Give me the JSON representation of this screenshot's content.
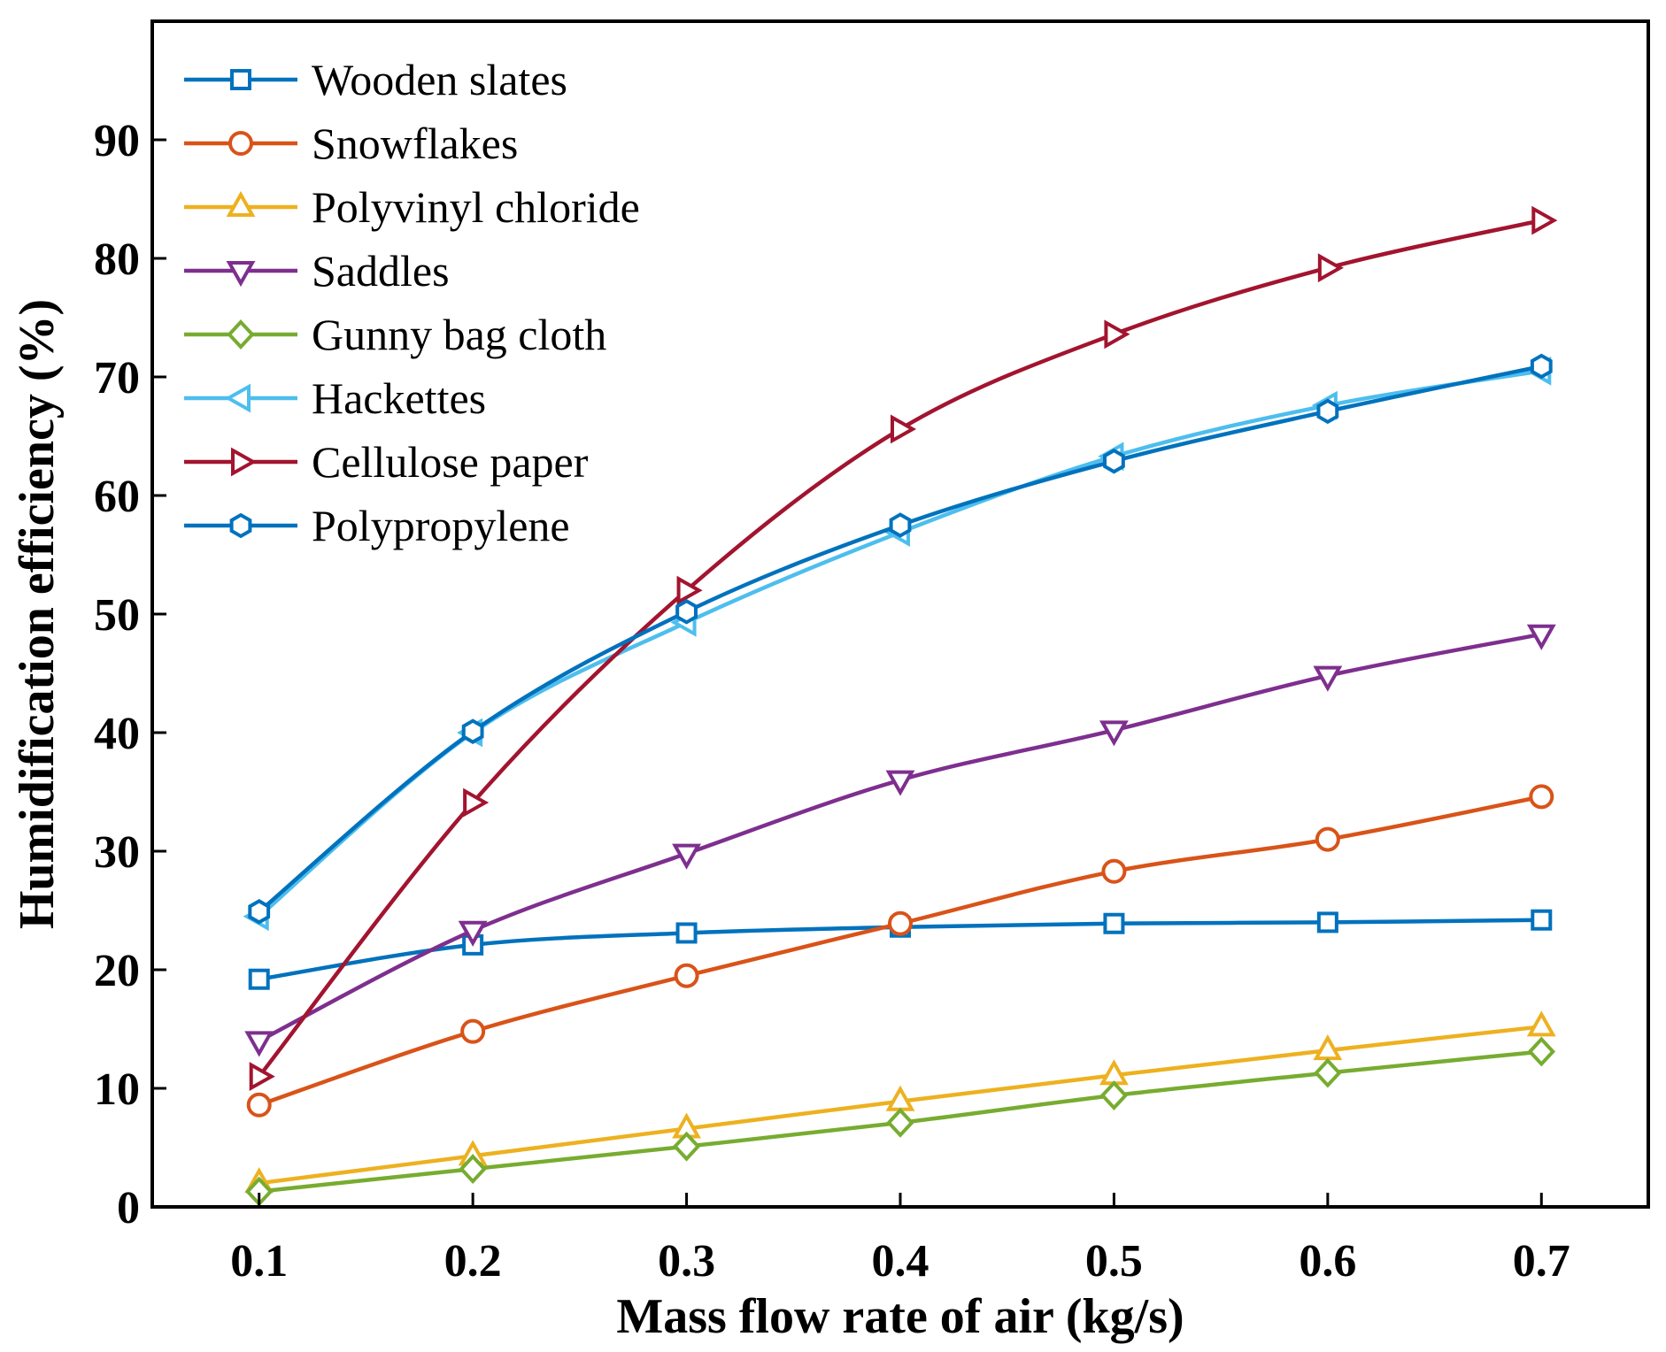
{
  "chart_data": {
    "type": "line",
    "xlabel": "Mass flow rate of air (kg/s)",
    "ylabel": "Humidification efficiency (%)",
    "x": [
      0.1,
      0.2,
      0.3,
      0.4,
      0.5,
      0.6,
      0.7
    ],
    "x_tick_labels": [
      "0.1",
      "0.2",
      "0.3",
      "0.4",
      "0.5",
      "0.6",
      "0.7"
    ],
    "xlim": [
      0.05,
      0.75
    ],
    "ylim": [
      0,
      100
    ],
    "y_ticks": [
      0,
      10,
      20,
      30,
      40,
      50,
      60,
      70,
      80,
      90
    ],
    "y_tick_labels": [
      "0",
      "10",
      "20",
      "30",
      "40",
      "50",
      "60",
      "70",
      "80",
      "90"
    ],
    "grid": false,
    "legend_position": "top-left",
    "series": [
      {
        "name": "Wooden slates",
        "marker": "square",
        "color": "#0072BD",
        "values": [
          19.2,
          22.1,
          23.1,
          23.6,
          23.9,
          24.0,
          24.2
        ]
      },
      {
        "name": "Snowflakes",
        "marker": "circle",
        "color": "#D95319",
        "values": [
          8.6,
          14.8,
          19.5,
          23.9,
          28.3,
          31.0,
          34.6
        ]
      },
      {
        "name": "Polyvinyl chloride",
        "marker": "triangle-up",
        "color": "#EDB120",
        "values": [
          2.0,
          4.3,
          6.6,
          8.9,
          11.1,
          13.2,
          15.2
        ]
      },
      {
        "name": "Saddles",
        "marker": "triangle-down",
        "color": "#7E2F8E",
        "values": [
          14.0,
          23.3,
          29.8,
          36.0,
          40.2,
          44.8,
          48.3
        ]
      },
      {
        "name": "Gunny bag cloth",
        "marker": "diamond",
        "color": "#77AC30",
        "values": [
          1.3,
          3.2,
          5.1,
          7.1,
          9.4,
          11.3,
          13.1
        ]
      },
      {
        "name": "Hackettes",
        "marker": "triangle-left",
        "color": "#4DBEEE",
        "values": [
          24.5,
          40.0,
          49.3,
          56.9,
          63.3,
          67.6,
          70.5
        ]
      },
      {
        "name": "Cellulose paper",
        "marker": "triangle-right",
        "color": "#A2142F",
        "values": [
          11.0,
          34.1,
          52.0,
          65.6,
          73.6,
          79.2,
          83.2
        ]
      },
      {
        "name": "Polypropylene",
        "marker": "hexagon",
        "color": "#0072BD",
        "values": [
          24.9,
          40.1,
          50.2,
          57.5,
          62.9,
          67.1,
          70.9
        ]
      }
    ]
  }
}
